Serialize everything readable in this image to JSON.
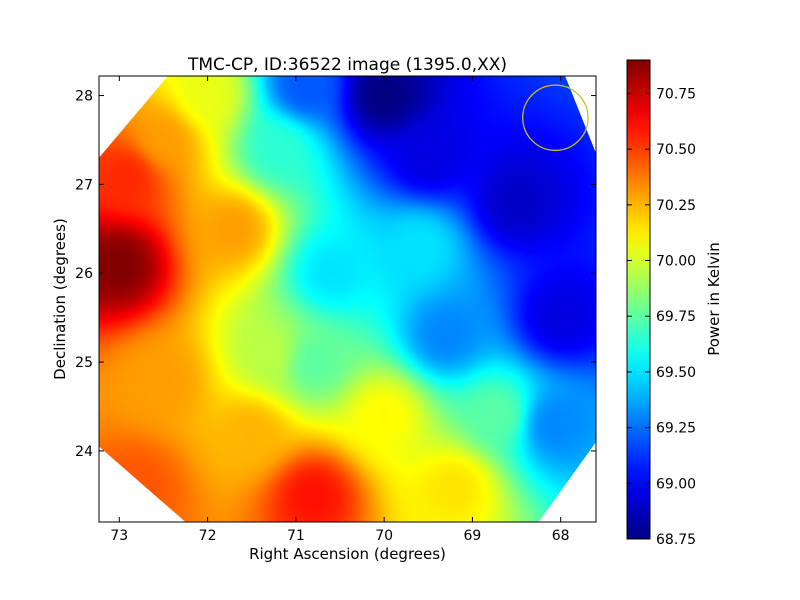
{
  "chart_data": {
    "type": "heatmap",
    "title": "TMC-CP, ID:36522 image (1395.0,XX)",
    "xlabel": "Right Ascension (degrees)",
    "ylabel": "Declination (degrees)",
    "colorbar_label": "Power in Kelvin",
    "colormap": "jet",
    "xlim": [
      73.23,
      67.6
    ],
    "ylim": [
      23.2,
      28.22
    ],
    "x_axis_inverted": true,
    "xticks": [
      73,
      72,
      71,
      70,
      69,
      68
    ],
    "yticks": [
      24,
      25,
      26,
      27,
      28
    ],
    "clim": [
      68.75,
      70.9
    ],
    "colorbar_ticks": [
      70.75,
      70.5,
      70.25,
      70.0,
      69.75,
      69.5,
      69.25,
      69.0,
      68.75
    ],
    "colorbar_tick_labels": [
      "70.75",
      "70.50",
      "70.25",
      "70.00",
      "69.75",
      "69.50",
      "69.25",
      "69.00",
      "68.75"
    ],
    "grid": false,
    "legend": "none",
    "beam_circle": {
      "ra": 68.06,
      "dec": 27.75,
      "radius_deg": 0.37,
      "color": "#c8c02a"
    },
    "footprint": [
      [
        72.45,
        28.22
      ],
      [
        67.95,
        28.22
      ],
      [
        67.6,
        27.35
      ],
      [
        67.6,
        24.1
      ],
      [
        68.25,
        23.2
      ],
      [
        72.25,
        23.2
      ],
      [
        73.23,
        24.05
      ],
      [
        73.23,
        27.3
      ]
    ],
    "field_points": [
      {
        "ra": 73.0,
        "dec": 26.1,
        "value": 70.9
      },
      {
        "ra": 72.9,
        "dec": 27.1,
        "value": 70.55
      },
      {
        "ra": 72.5,
        "dec": 27.5,
        "value": 70.3
      },
      {
        "ra": 72.0,
        "dec": 28.0,
        "value": 70.05
      },
      {
        "ra": 71.7,
        "dec": 26.5,
        "value": 70.3
      },
      {
        "ra": 71.2,
        "dec": 27.4,
        "value": 69.65
      },
      {
        "ra": 70.9,
        "dec": 28.1,
        "value": 69.2
      },
      {
        "ra": 70.0,
        "dec": 28.0,
        "value": 68.75
      },
      {
        "ra": 69.5,
        "dec": 27.3,
        "value": 68.95
      },
      {
        "ra": 68.5,
        "dec": 26.8,
        "value": 68.9
      },
      {
        "ra": 68.0,
        "dec": 25.5,
        "value": 68.95
      },
      {
        "ra": 69.3,
        "dec": 25.3,
        "value": 69.3
      },
      {
        "ra": 70.6,
        "dec": 26.0,
        "value": 69.5
      },
      {
        "ra": 70.8,
        "dec": 25.0,
        "value": 69.75
      },
      {
        "ra": 71.3,
        "dec": 25.1,
        "value": 69.95
      },
      {
        "ra": 72.5,
        "dec": 24.8,
        "value": 70.3
      },
      {
        "ra": 71.5,
        "dec": 24.2,
        "value": 70.25
      },
      {
        "ra": 70.8,
        "dec": 23.5,
        "value": 70.6
      },
      {
        "ra": 70.0,
        "dec": 24.4,
        "value": 70.1
      },
      {
        "ra": 69.2,
        "dec": 23.6,
        "value": 70.15
      },
      {
        "ra": 68.7,
        "dec": 24.4,
        "value": 69.75
      },
      {
        "ra": 68.1,
        "dec": 24.3,
        "value": 69.3
      },
      {
        "ra": 69.6,
        "dec": 26.3,
        "value": 69.5
      },
      {
        "ra": 72.8,
        "dec": 23.6,
        "value": 70.45
      }
    ]
  }
}
